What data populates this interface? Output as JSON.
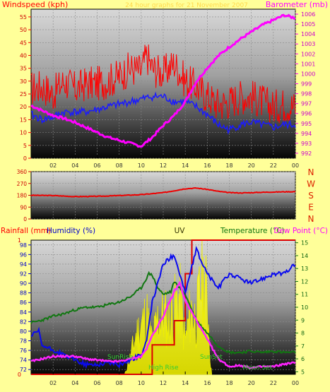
{
  "chart_data": [
    {
      "type": "line",
      "title": "24 hour graphs for 21 November 2007",
      "left_axis_label": "Windspeed (kph)",
      "right_axis_label": "Barometer (mb)",
      "left_ticks": [
        "0",
        "5",
        "10",
        "15",
        "20",
        "25",
        "30",
        "35",
        "40",
        "45",
        "50",
        "55"
      ],
      "right_ticks": [
        "992",
        "993",
        "994",
        "995",
        "996",
        "997",
        "998",
        "999",
        "1000",
        "1001",
        "1002",
        "1003",
        "1004",
        "1005",
        "1006"
      ],
      "x_ticks": [
        "02",
        "04",
        "06",
        "08",
        "10",
        "12",
        "14",
        "16",
        "18",
        "20",
        "22",
        "00"
      ],
      "ylim_left": [
        0,
        58
      ],
      "ylim_right": [
        991.5,
        1006.5
      ],
      "colors": {
        "gust": "#ff0000",
        "average": "#1a1aff",
        "barometer": "#ff00ff"
      },
      "series": [
        {
          "name": "Wind gust",
          "values": [
            [
              0,
              27
            ],
            [
              1,
              28
            ],
            [
              2,
              25
            ],
            [
              3,
              30
            ],
            [
              4,
              27
            ],
            [
              5,
              29
            ],
            [
              6,
              29
            ],
            [
              7,
              30
            ],
            [
              8,
              32
            ],
            [
              9,
              35
            ],
            [
              10,
              34
            ],
            [
              10.5,
              40
            ],
            [
              11,
              35
            ],
            [
              12,
              33
            ],
            [
              13,
              37
            ],
            [
              14,
              30
            ],
            [
              15,
              28
            ],
            [
              16,
              24
            ],
            [
              17,
              21
            ],
            [
              18,
              22
            ],
            [
              19,
              24
            ],
            [
              20,
              24
            ],
            [
              21,
              22
            ],
            [
              22,
              20
            ],
            [
              23,
              21
            ],
            [
              24,
              20
            ]
          ]
        },
        {
          "name": "Wind average",
          "values": [
            [
              0,
              17
            ],
            [
              1,
              15
            ],
            [
              2,
              16
            ],
            [
              3,
              18
            ],
            [
              4,
              18
            ],
            [
              5,
              18
            ],
            [
              6,
              19
            ],
            [
              7,
              20
            ],
            [
              8,
              21
            ],
            [
              9,
              22
            ],
            [
              10,
              23
            ],
            [
              11,
              24
            ],
            [
              12,
              24
            ],
            [
              13,
              22
            ],
            [
              14,
              22
            ],
            [
              15,
              20
            ],
            [
              16,
              17
            ],
            [
              17,
              13
            ],
            [
              18,
              11
            ],
            [
              19,
              13
            ],
            [
              20,
              14
            ],
            [
              21,
              13
            ],
            [
              22,
              12
            ],
            [
              23,
              13
            ],
            [
              24,
              13
            ]
          ]
        }
      ],
      "barometer_series": {
        "name": "Barometer",
        "values": [
          [
            0,
            996.8
          ],
          [
            1,
            996.3
          ],
          [
            2,
            995.8
          ],
          [
            3,
            995.5
          ],
          [
            4,
            995.1
          ],
          [
            5,
            994.6
          ],
          [
            6,
            994.1
          ],
          [
            7,
            993.6
          ],
          [
            8,
            993.3
          ],
          [
            9,
            993.0
          ],
          [
            10,
            992.7
          ],
          [
            11,
            993.6
          ],
          [
            12,
            994.8
          ],
          [
            13,
            995.8
          ],
          [
            14,
            997.2
          ],
          [
            15,
            999.2
          ],
          [
            16,
            1000.6
          ],
          [
            17,
            1001.8
          ],
          [
            18,
            1002.7
          ],
          [
            19,
            1003.5
          ],
          [
            20,
            1004.2
          ],
          [
            21,
            1004.9
          ],
          [
            22,
            1005.4
          ],
          [
            23,
            1005.9
          ],
          [
            24,
            1005.6
          ]
        ]
      }
    },
    {
      "type": "line",
      "title": "",
      "left_ticks": [
        "0",
        "90",
        "180",
        "270",
        "360"
      ],
      "right_labels": [
        "N",
        "W",
        "S",
        "E",
        "N"
      ],
      "x_ticks": [
        "02",
        "04",
        "06",
        "08",
        "10",
        "12",
        "14",
        "16",
        "18",
        "20",
        "22",
        "00"
      ],
      "ylim": [
        0,
        360
      ],
      "color": "#ee0000",
      "series": [
        {
          "name": "Wind direction",
          "values": [
            [
              0,
              180
            ],
            [
              2,
              178
            ],
            [
              4,
              170
            ],
            [
              6,
              172
            ],
            [
              8,
              178
            ],
            [
              10,
              185
            ],
            [
              12,
              200
            ],
            [
              13,
              215
            ],
            [
              14,
              230
            ],
            [
              15,
              235
            ],
            [
              16,
              225
            ],
            [
              17,
              210
            ],
            [
              18,
              200
            ],
            [
              19,
              198
            ],
            [
              20,
              200
            ],
            [
              21,
              203
            ],
            [
              22,
              205
            ],
            [
              24,
              208
            ]
          ]
        }
      ]
    },
    {
      "type": "line",
      "title": "UV",
      "top_labels": {
        "rainfall": "Rainfall (mm)",
        "humidity": "Humidity (%)",
        "uv": "UV",
        "temperature": "Temperature (°C)",
        "dewpoint": "Dew Point (°C)"
      },
      "left_ticks": [
        "72",
        "74",
        "76",
        "78",
        "80",
        "82",
        "84",
        "86",
        "88",
        "90",
        "92",
        "94",
        "96",
        "98"
      ],
      "right_ticks": [
        "5",
        "6",
        "7",
        "8",
        "9",
        "10",
        "11",
        "12",
        "13",
        "14",
        "15"
      ],
      "rain_ticks": [
        "0",
        "1"
      ],
      "x_ticks": [
        "02",
        "04",
        "06",
        "08",
        "10",
        "12",
        "14",
        "16",
        "18",
        "20",
        "22",
        "00"
      ],
      "ylim_humidity": [
        71,
        99
      ],
      "ylim_temp": [
        4.8,
        15.2
      ],
      "annotations": {
        "sunrise": "SunRise",
        "high_rise": "High Rise",
        "sunset": "SunSet",
        "moon_set": "Moon Set"
      },
      "colors": {
        "humidity": "#0a0aee",
        "temperature": "#117711",
        "dewpoint": "#ff22ff",
        "uv": "#ffff00",
        "rainfall": "#dd0000"
      },
      "series": [
        {
          "name": "Humidity",
          "values": [
            [
              0,
              79
            ],
            [
              0.7,
              80
            ],
            [
              1,
              77
            ],
            [
              2,
              76
            ],
            [
              3,
              75
            ],
            [
              4,
              74
            ],
            [
              5,
              73
            ],
            [
              6,
              73
            ],
            [
              7,
              73.5
            ],
            [
              8,
              73
            ],
            [
              9,
              74
            ],
            [
              10,
              75
            ],
            [
              10.5,
              78
            ],
            [
              11,
              86
            ],
            [
              12,
              94
            ],
            [
              13,
              96
            ],
            [
              14,
              88
            ],
            [
              15,
              97
            ],
            [
              16,
              92
            ],
            [
              17,
              89
            ],
            [
              18,
              92
            ],
            [
              19,
              91
            ],
            [
              20,
              90
            ],
            [
              21,
              91
            ],
            [
              22,
              92
            ],
            [
              23,
              92
            ],
            [
              24,
              94
            ]
          ]
        },
        {
          "name": "Temperature",
          "values": [
            [
              0,
              8.8
            ],
            [
              1,
              9.0
            ],
            [
              2,
              9.3
            ],
            [
              3,
              9.5
            ],
            [
              4,
              9.8
            ],
            [
              5,
              10.0
            ],
            [
              6,
              10.0
            ],
            [
              7,
              10.2
            ],
            [
              8,
              10.4
            ],
            [
              9,
              10.8
            ],
            [
              10,
              11.5
            ],
            [
              10.7,
              12.6
            ],
            [
              11,
              12.5
            ],
            [
              11.5,
              11.5
            ],
            [
              12,
              11.0
            ],
            [
              12.7,
              11.2
            ],
            [
              13,
              12.0
            ],
            [
              14,
              11.0
            ],
            [
              15,
              9.0
            ],
            [
              16,
              8.0
            ],
            [
              17,
              7.0
            ],
            [
              18,
              6.5
            ],
            [
              19,
              6.5
            ],
            [
              20,
              6.6
            ],
            [
              21,
              6.5
            ],
            [
              22,
              6.6
            ],
            [
              23,
              6.5
            ],
            [
              24,
              6.5
            ]
          ]
        },
        {
          "name": "Dew Point",
          "values": [
            [
              0,
              5.8
            ],
            [
              1,
              6.0
            ],
            [
              2,
              6.2
            ],
            [
              3,
              6.2
            ],
            [
              4,
              6.2
            ],
            [
              5,
              6.0
            ],
            [
              6,
              5.9
            ],
            [
              7,
              5.8
            ],
            [
              8,
              5.8
            ],
            [
              9,
              6.0
            ],
            [
              10,
              6.2
            ],
            [
              10.5,
              6.8
            ],
            [
              11,
              7.8
            ],
            [
              12,
              9.3
            ],
            [
              13,
              11.2
            ],
            [
              13.5,
              11.9
            ],
            [
              14,
              10.5
            ],
            [
              15,
              9.0
            ],
            [
              16,
              7.5
            ],
            [
              17,
              6.0
            ],
            [
              18,
              5.4
            ],
            [
              19,
              5.5
            ],
            [
              20,
              5.3
            ],
            [
              21,
              5.4
            ],
            [
              22,
              5.4
            ],
            [
              23,
              5.6
            ],
            [
              24,
              5.7
            ]
          ]
        },
        {
          "name": "UV",
          "values": [
            [
              8.5,
              0
            ],
            [
              9,
              0.15
            ],
            [
              9.5,
              0.35
            ],
            [
              10,
              0.45
            ],
            [
              10.5,
              0.55
            ],
            [
              11,
              0.3
            ],
            [
              11.5,
              0.5
            ],
            [
              12,
              0.55
            ],
            [
              12.5,
              0.5
            ],
            [
              13,
              0.6
            ],
            [
              13.5,
              0.7
            ],
            [
              14,
              0.3
            ],
            [
              14.5,
              0.6
            ],
            [
              15,
              0.5
            ],
            [
              15.5,
              0.9
            ],
            [
              16,
              0.7
            ],
            [
              16.3,
              0.1
            ],
            [
              16.4,
              0
            ]
          ]
        },
        {
          "name": "Rainfall",
          "values": [
            [
              0,
              0
            ],
            [
              10.6,
              0
            ],
            [
              11,
              0.22
            ],
            [
              12,
              0.22
            ],
            [
              12.9,
              0.22
            ],
            [
              13,
              0.4
            ],
            [
              13.9,
              0.4
            ],
            [
              14,
              0.75
            ],
            [
              14.5,
              0.75
            ],
            [
              14.6,
              1.0
            ],
            [
              24,
              1.0
            ]
          ]
        }
      ]
    }
  ]
}
